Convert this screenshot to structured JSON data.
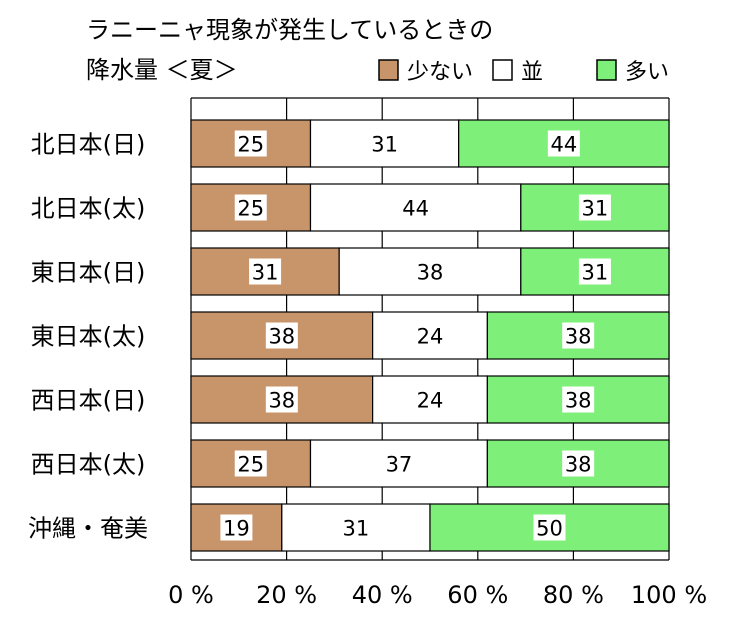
{
  "chart_data": {
    "type": "bar",
    "stacked": true,
    "orientation": "horizontal",
    "title_lines": [
      "ラニーニャ現象が発生しているときの",
      "降水量 ＜夏＞"
    ],
    "categories": [
      "北日本(日)",
      "北日本(太)",
      "東日本(日)",
      "東日本(太)",
      "西日本(日)",
      "西日本(太)",
      "沖縄・奄美"
    ],
    "series": [
      {
        "name": "少ない",
        "color": "#c8956a",
        "values": [
          25,
          25,
          31,
          38,
          38,
          25,
          19
        ]
      },
      {
        "name": "並",
        "color": "#ffffff",
        "values": [
          31,
          44,
          38,
          24,
          24,
          37,
          31
        ]
      },
      {
        "name": "多い",
        "color": "#7ef07a",
        "values": [
          44,
          31,
          31,
          38,
          38,
          38,
          50
        ]
      }
    ],
    "xlim": [
      0,
      100
    ],
    "x_ticks": [
      "0 %",
      "20 %",
      "40 %",
      "60 %",
      "80 %",
      "100 %"
    ],
    "grid": true,
    "legend_position": "top-right"
  }
}
